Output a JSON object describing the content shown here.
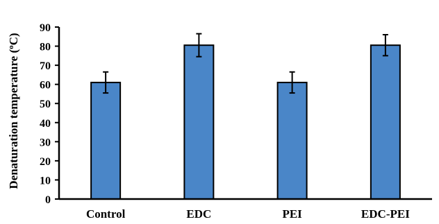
{
  "chart_data": {
    "type": "bar",
    "title": "",
    "xlabel": "",
    "ylabel": "Denaturation temperature (",
    "ylabel_unit_sup": "o",
    "ylabel_unit_tail": "C)",
    "categories": [
      "Control",
      "EDC",
      "PEI",
      "EDC-PEI"
    ],
    "values": [
      61,
      80.5,
      61,
      80.5
    ],
    "errors": [
      5.5,
      6,
      5.5,
      5.5
    ],
    "ylim": [
      0,
      90
    ],
    "yticks": [
      0,
      10,
      20,
      30,
      40,
      50,
      60,
      70,
      80,
      90
    ],
    "grid": false,
    "legend": "none",
    "colors": {
      "bar_fill": "#4a86c8",
      "bar_stroke": "#000000",
      "axis": "#000000"
    }
  }
}
